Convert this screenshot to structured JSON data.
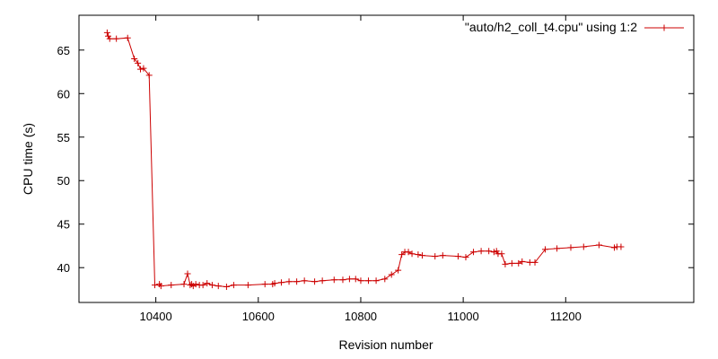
{
  "chart_data": {
    "type": "line",
    "title": "",
    "xlabel": "Revision number",
    "ylabel": "CPU time (s)",
    "xlim": [
      10250,
      11450
    ],
    "ylim": [
      36,
      69
    ],
    "xticks": [
      10400,
      10600,
      10800,
      11000,
      11200
    ],
    "yticks": [
      40,
      45,
      50,
      55,
      60,
      65
    ],
    "grid": false,
    "legend_position": "top-right",
    "colors": {
      "series": "#cc0000",
      "axes": "#000000"
    },
    "series": [
      {
        "name": "\"auto/h2_coll_t4.cpu\" using 1:2",
        "marker": "plus",
        "x": [
          10305,
          10307,
          10310,
          10323,
          10345,
          10358,
          10365,
          10370,
          10376,
          10387,
          10398,
          10407,
          10410,
          10430,
          10455,
          10462,
          10467,
          10470,
          10473,
          10478,
          10485,
          10492,
          10500,
          10510,
          10522,
          10538,
          10552,
          10580,
          10613,
          10628,
          10632,
          10645,
          10660,
          10675,
          10690,
          10710,
          10725,
          10748,
          10765,
          10778,
          10790,
          10800,
          10815,
          10830,
          10847,
          10860,
          10873,
          10880,
          10886,
          10893,
          10900,
          10912,
          10920,
          10945,
          10960,
          10990,
          11005,
          11020,
          11035,
          11050,
          11060,
          11065,
          11068,
          11075,
          11082,
          11095,
          11108,
          11115,
          11130,
          11140,
          11160,
          11183,
          11210,
          11235,
          11265,
          11295,
          11300,
          11308
        ],
        "y": [
          67.0,
          66.6,
          66.3,
          66.3,
          66.4,
          64.0,
          63.5,
          62.8,
          62.9,
          62.1,
          38.0,
          38.1,
          37.9,
          38.0,
          38.1,
          39.3,
          38.0,
          38.1,
          37.9,
          38.1,
          38.0,
          38.0,
          38.2,
          38.0,
          37.9,
          37.8,
          38.0,
          38.0,
          38.1,
          38.1,
          38.2,
          38.3,
          38.4,
          38.4,
          38.5,
          38.4,
          38.5,
          38.6,
          38.6,
          38.7,
          38.7,
          38.5,
          38.5,
          38.5,
          38.7,
          39.2,
          39.7,
          41.5,
          41.8,
          41.8,
          41.6,
          41.5,
          41.4,
          41.3,
          41.4,
          41.3,
          41.2,
          41.8,
          41.9,
          41.9,
          41.8,
          41.9,
          41.6,
          41.6,
          40.4,
          40.5,
          40.5,
          40.7,
          40.6,
          40.6,
          42.1,
          42.2,
          42.3,
          42.4,
          42.6,
          42.3,
          42.4,
          42.4
        ]
      }
    ]
  }
}
